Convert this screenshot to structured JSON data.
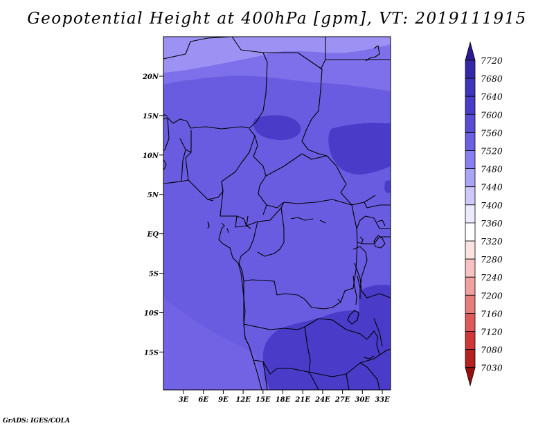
{
  "title": "Geopotential Height at 400hPa [gpm], VT: 2019111915",
  "credit": "GrADS: IGES/COLA",
  "map": {
    "lat_labels": [
      "20N",
      "15N",
      "10N",
      "5N",
      "EQ",
      "5S",
      "10S",
      "15S"
    ],
    "lon_labels": [
      "3E",
      "6E",
      "9E",
      "12E",
      "15E",
      "18E",
      "21E",
      "24E",
      "27E",
      "30E",
      "33E"
    ],
    "extent": {
      "lon": [
        0,
        35
      ],
      "lat": [
        -20,
        24.5
      ]
    },
    "base_color": "#6a5ce0",
    "region_colors": {
      "7520": "#7d70ea",
      "7480": "#9d92f4",
      "7600": "#4a3cc8"
    }
  },
  "colorbar": {
    "levels": [
      "7720",
      "7680",
      "7640",
      "7600",
      "7560",
      "7520",
      "7480",
      "7440",
      "7400",
      "7360",
      "7320",
      "7280",
      "7240",
      "7200",
      "7160",
      "7120",
      "7080",
      "7030"
    ],
    "colors": [
      "#2b1a8f",
      "#3528a8",
      "#4033bc",
      "#4a3cc8",
      "#5b4cd6",
      "#6c5fe2",
      "#8a7ff0",
      "#aaa3f6",
      "#cdc9fb",
      "#eceafe",
      "#ffffff",
      "#fde2e2",
      "#f8c2c2",
      "#f1a0a0",
      "#e87d7d",
      "#de5959",
      "#cf3838",
      "#b52020",
      "#961010"
    ]
  }
}
